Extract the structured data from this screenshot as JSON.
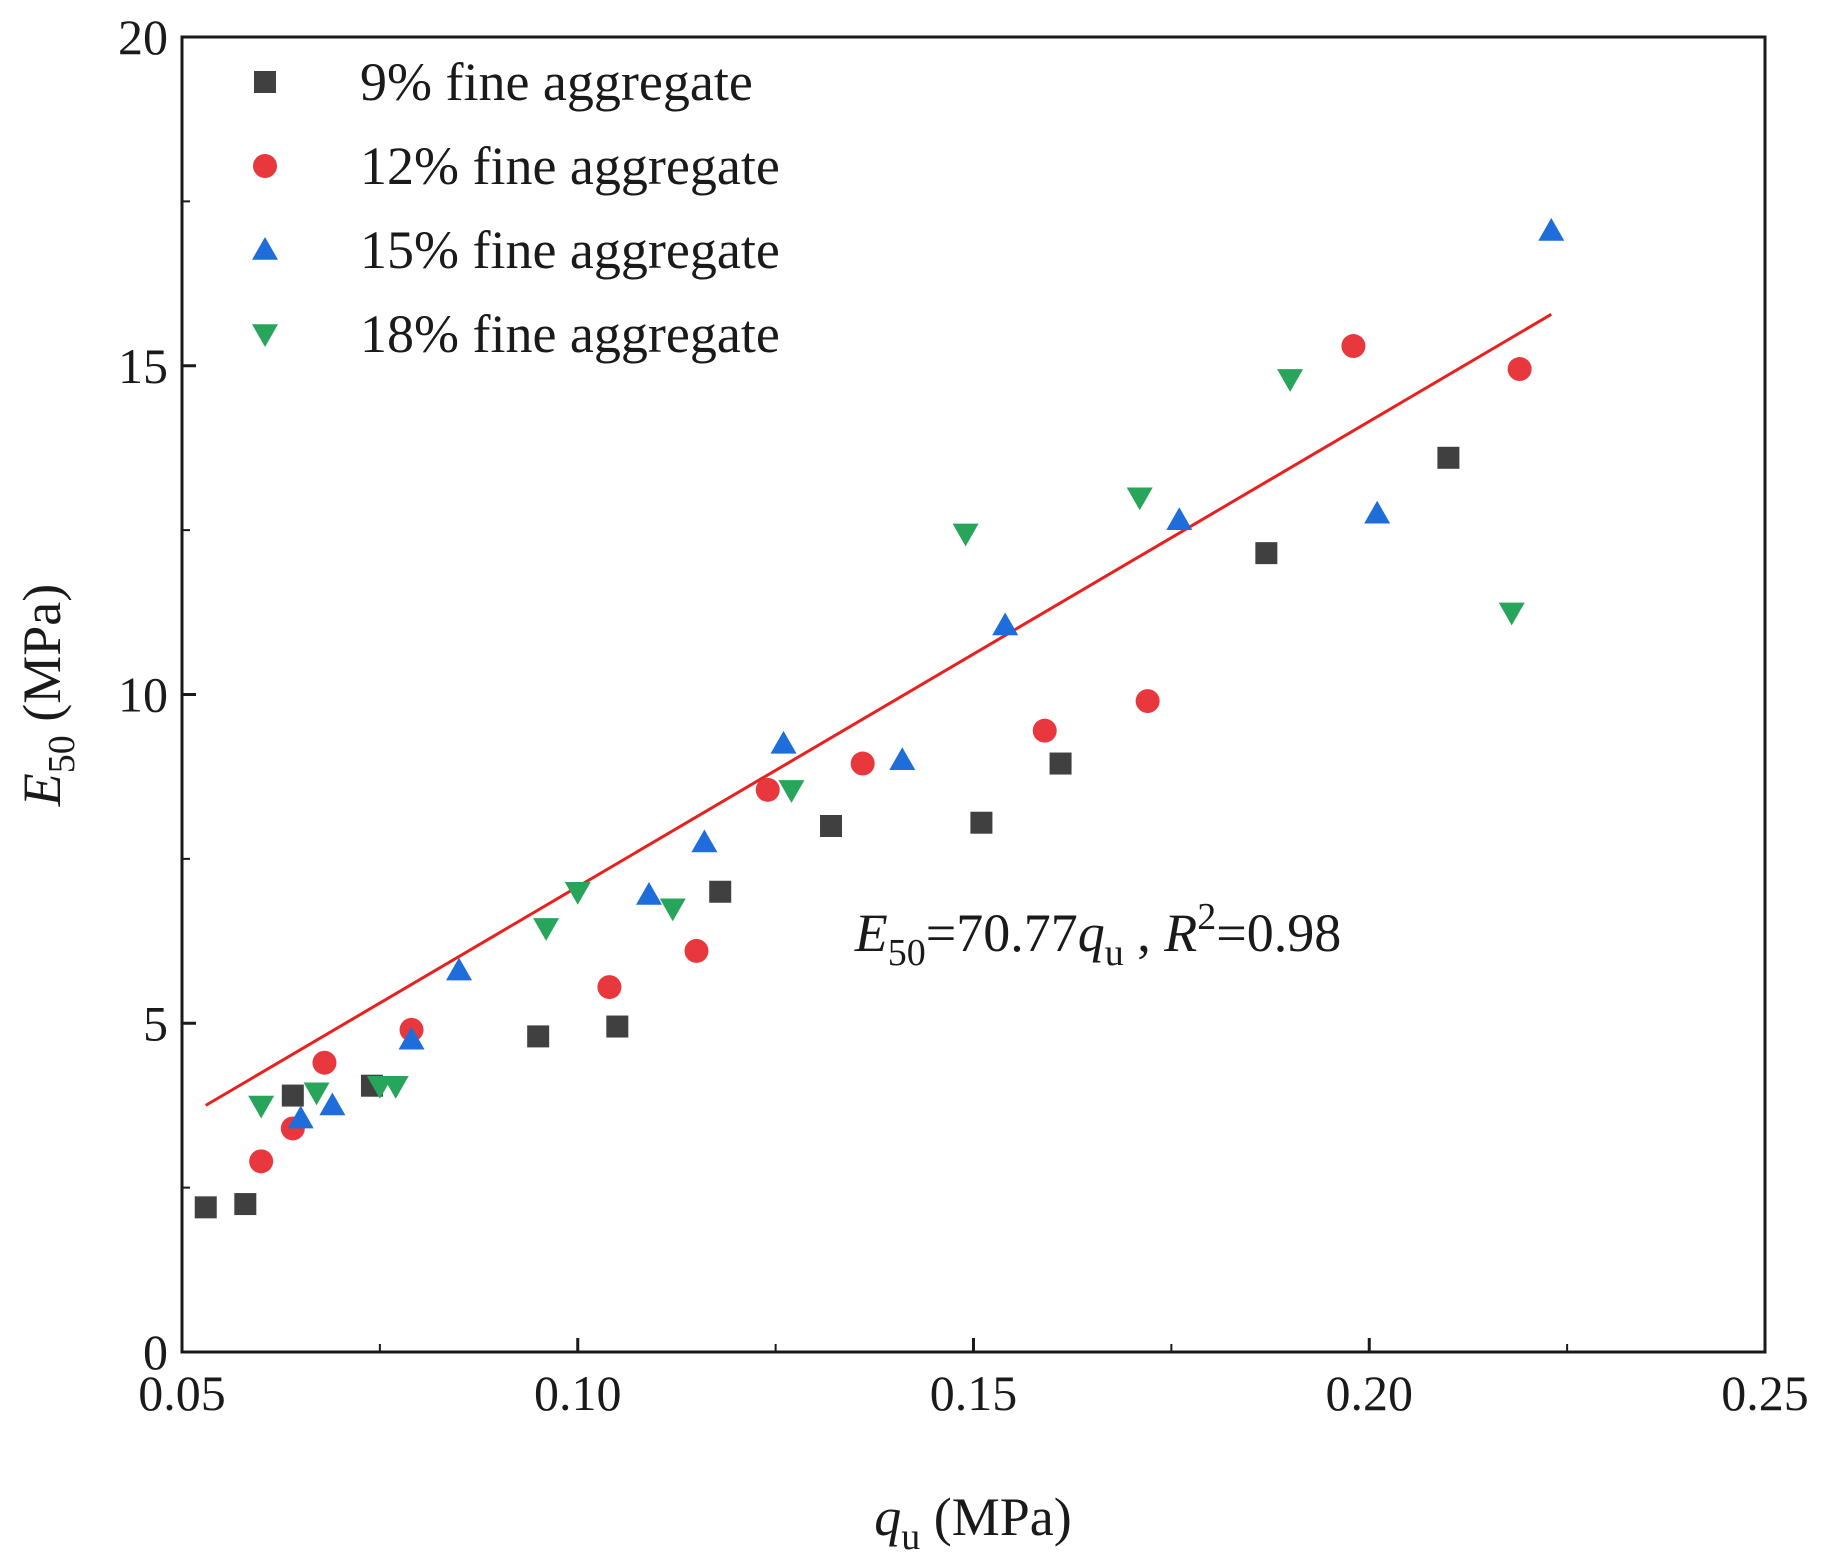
{
  "chart_data": {
    "type": "scatter",
    "xlabel": {
      "main": "q",
      "sub": "u",
      "unit": " (MPa)"
    },
    "ylabel": {
      "main": "E",
      "sub": "50",
      "unit": " (MPa)"
    },
    "xlim": [
      0.05,
      0.25
    ],
    "ylim": [
      0,
      20
    ],
    "xticks": [
      0.05,
      0.1,
      0.15,
      0.2,
      0.25
    ],
    "xtick_labels": [
      "0.05",
      "0.10",
      "0.15",
      "0.20",
      "0.25"
    ],
    "yticks": [
      0,
      5,
      10,
      15,
      20
    ],
    "ytick_labels": [
      "0",
      "5",
      "10",
      "15",
      "20"
    ],
    "grid": false,
    "legend_position": "top-left",
    "series": [
      {
        "name": "9% fine aggregate",
        "marker": "square",
        "color": "#404040",
        "points": [
          [
            0.053,
            2.2
          ],
          [
            0.058,
            2.25
          ],
          [
            0.064,
            3.9
          ],
          [
            0.074,
            4.05
          ],
          [
            0.095,
            4.8
          ],
          [
            0.105,
            4.95
          ],
          [
            0.118,
            7.0
          ],
          [
            0.132,
            8.0
          ],
          [
            0.151,
            8.05
          ],
          [
            0.161,
            8.95
          ],
          [
            0.187,
            12.15
          ],
          [
            0.21,
            13.6
          ]
        ]
      },
      {
        "name": "12% fine aggregate",
        "marker": "circle",
        "color": "#e8383d",
        "points": [
          [
            0.06,
            2.9
          ],
          [
            0.064,
            3.4
          ],
          [
            0.068,
            4.4
          ],
          [
            0.079,
            4.9
          ],
          [
            0.104,
            5.55
          ],
          [
            0.115,
            6.1
          ],
          [
            0.124,
            8.55
          ],
          [
            0.136,
            8.95
          ],
          [
            0.159,
            9.45
          ],
          [
            0.172,
            9.9
          ],
          [
            0.198,
            15.3
          ],
          [
            0.219,
            14.95
          ]
        ]
      },
      {
        "name": "15% fine aggregate",
        "marker": "triangle-up",
        "color": "#1f6ddb",
        "points": [
          [
            0.065,
            3.55
          ],
          [
            0.069,
            3.75
          ],
          [
            0.079,
            4.75
          ],
          [
            0.085,
            5.8
          ],
          [
            0.109,
            6.95
          ],
          [
            0.116,
            7.75
          ],
          [
            0.126,
            9.25
          ],
          [
            0.141,
            9.0
          ],
          [
            0.154,
            11.05
          ],
          [
            0.176,
            12.65
          ],
          [
            0.201,
            12.75
          ],
          [
            0.223,
            17.05
          ]
        ]
      },
      {
        "name": "18% fine aggregate",
        "marker": "triangle-down",
        "color": "#27a55a",
        "points": [
          [
            0.06,
            3.75
          ],
          [
            0.067,
            3.95
          ],
          [
            0.075,
            4.05
          ],
          [
            0.077,
            4.05
          ],
          [
            0.096,
            6.45
          ],
          [
            0.1,
            7.0
          ],
          [
            0.112,
            6.75
          ],
          [
            0.127,
            8.55
          ],
          [
            0.149,
            12.45
          ],
          [
            0.171,
            13.0
          ],
          [
            0.19,
            14.8
          ],
          [
            0.218,
            11.25
          ]
        ]
      }
    ],
    "fit_line": {
      "color": "#e8201e",
      "slope": 70.77,
      "x_range": [
        0.053,
        0.223
      ],
      "equation": {
        "lhs_main": "E",
        "lhs_sub": "50",
        "rhs_coef": "=70.77",
        "rhs_var": "q",
        "rhs_var_sub": "u",
        "sep": " , ",
        "r_main": "R",
        "r_sup": "2",
        "r_val": "=0.98"
      },
      "annotation_at": [
        0.135,
        6.1
      ]
    }
  }
}
